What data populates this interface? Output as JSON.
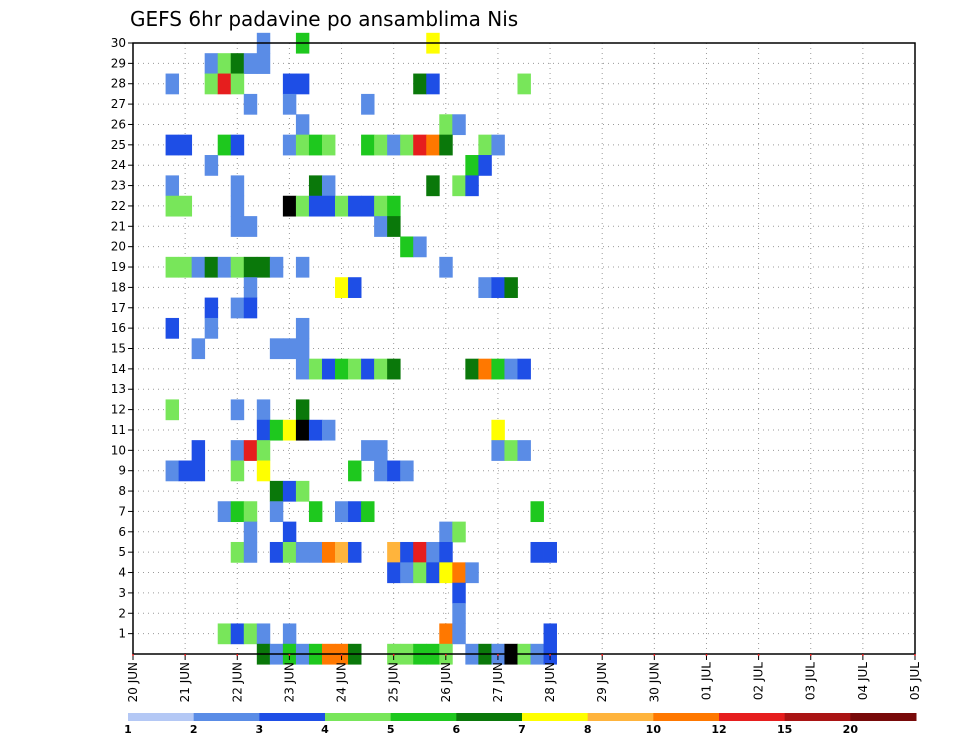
{
  "chart_data": {
    "type": "heatmap",
    "title": "GEFS 6hr padavine po ansamblima Nis",
    "xlabel": "",
    "ylabel": "",
    "x_tick_labels": [
      "20 JUN",
      "21 JUN",
      "22 JUN",
      "23 JUN",
      "24 JUN",
      "25 JUN",
      "26 JUN",
      "27 JUN",
      "28 JUN",
      "29 JUN",
      "30 JUN",
      "01 JUL",
      "02 JUL",
      "03 JUL",
      "04 JUL",
      "05 JUL"
    ],
    "y_tick_labels": [
      "1",
      "2",
      "3",
      "4",
      "5",
      "6",
      "7",
      "8",
      "9",
      "10",
      "11",
      "12",
      "13",
      "14",
      "15",
      "16",
      "17",
      "18",
      "19",
      "20",
      "21",
      "22",
      "23",
      "24",
      "25",
      "26",
      "27",
      "28",
      "29",
      "30"
    ],
    "xlim": [
      0,
      15
    ],
    "ylim": [
      0,
      30
    ],
    "grid": true,
    "legend_placement": "bottom",
    "legend": {
      "labels": [
        "1",
        "2",
        "3",
        "4",
        "5",
        "6",
        "7",
        "8",
        "10",
        "12",
        "15",
        "20"
      ],
      "colors": [
        "#b4c8f5",
        "#5a8ce6",
        "#1e4ee6",
        "#78e65a",
        "#1ec81e",
        "#0a780a",
        "#ffff00",
        "#ffb43c",
        "#ff7800",
        "#e61e1e",
        "#aa1414",
        "#780a0a"
      ]
    },
    "cells": [
      [
        30,
        2.5,
        1
      ],
      [
        30,
        3.25,
        4
      ],
      [
        30,
        5.75,
        6
      ],
      [
        29,
        1.5,
        1
      ],
      [
        29,
        1.75,
        3
      ],
      [
        29,
        2.0,
        5
      ],
      [
        29,
        2.25,
        1
      ],
      [
        29,
        2.5,
        1
      ],
      [
        28,
        0.75,
        1
      ],
      [
        28,
        1.5,
        3
      ],
      [
        28,
        1.75,
        9
      ],
      [
        28,
        2.0,
        3
      ],
      [
        28,
        3.0,
        2
      ],
      [
        28,
        3.25,
        2
      ],
      [
        28,
        5.5,
        5
      ],
      [
        28,
        5.75,
        2
      ],
      [
        28,
        7.5,
        3
      ],
      [
        27,
        2.25,
        1
      ],
      [
        27,
        3.0,
        1
      ],
      [
        27,
        4.5,
        1
      ],
      [
        26,
        3.25,
        1
      ],
      [
        26,
        6.0,
        3
      ],
      [
        26,
        6.25,
        1
      ],
      [
        25,
        0.75,
        2
      ],
      [
        25,
        1.0,
        2
      ],
      [
        25,
        1.75,
        4
      ],
      [
        25,
        2.0,
        2
      ],
      [
        25,
        3.0,
        1
      ],
      [
        25,
        3.25,
        3
      ],
      [
        25,
        3.5,
        4
      ],
      [
        25,
        3.75,
        3
      ],
      [
        25,
        4.5,
        4
      ],
      [
        25,
        4.75,
        3
      ],
      [
        25,
        5.0,
        1
      ],
      [
        25,
        5.25,
        3
      ],
      [
        25,
        5.5,
        9
      ],
      [
        25,
        5.75,
        8
      ],
      [
        25,
        6.0,
        5
      ],
      [
        25,
        6.75,
        3
      ],
      [
        25,
        7.0,
        1
      ],
      [
        24,
        1.5,
        1
      ],
      [
        24,
        6.5,
        4
      ],
      [
        24,
        6.75,
        2
      ],
      [
        23,
        0.75,
        1
      ],
      [
        23,
        2.0,
        1
      ],
      [
        23,
        3.5,
        5
      ],
      [
        23,
        3.75,
        1
      ],
      [
        23,
        5.75,
        5
      ],
      [
        23,
        6.25,
        3
      ],
      [
        23,
        6.5,
        2
      ],
      [
        22,
        0.75,
        3
      ],
      [
        22,
        1.0,
        3
      ],
      [
        22,
        2.0,
        1
      ],
      [
        22,
        3.0,
        12
      ],
      [
        22,
        3.25,
        3
      ],
      [
        22,
        3.5,
        2
      ],
      [
        22,
        3.75,
        2
      ],
      [
        22,
        4.0,
        3
      ],
      [
        22,
        4.25,
        2
      ],
      [
        22,
        4.5,
        2
      ],
      [
        22,
        4.75,
        3
      ],
      [
        22,
        5.0,
        4
      ],
      [
        21,
        2.0,
        1
      ],
      [
        21,
        2.25,
        1
      ],
      [
        21,
        4.75,
        1
      ],
      [
        21,
        5.0,
        5
      ],
      [
        20,
        5.25,
        4
      ],
      [
        20,
        5.5,
        1
      ],
      [
        19,
        0.75,
        3
      ],
      [
        19,
        1.0,
        3
      ],
      [
        19,
        1.25,
        1
      ],
      [
        19,
        1.5,
        5
      ],
      [
        19,
        1.75,
        1
      ],
      [
        19,
        2.0,
        3
      ],
      [
        19,
        2.25,
        5
      ],
      [
        19,
        2.5,
        5
      ],
      [
        19,
        2.75,
        1
      ],
      [
        19,
        3.25,
        1
      ],
      [
        19,
        6.0,
        1
      ],
      [
        18,
        2.25,
        1
      ],
      [
        18,
        4.0,
        6
      ],
      [
        18,
        4.25,
        2
      ],
      [
        18,
        6.75,
        1
      ],
      [
        18,
        7.0,
        2
      ],
      [
        18,
        7.25,
        5
      ],
      [
        17,
        1.5,
        2
      ],
      [
        17,
        2.0,
        1
      ],
      [
        17,
        2.25,
        2
      ],
      [
        16,
        0.75,
        2
      ],
      [
        16,
        1.5,
        1
      ],
      [
        16,
        3.25,
        1
      ],
      [
        15,
        1.25,
        1
      ],
      [
        15,
        2.75,
        1
      ],
      [
        15,
        3.0,
        1
      ],
      [
        15,
        3.25,
        1
      ],
      [
        14,
        3.25,
        1
      ],
      [
        14,
        3.5,
        3
      ],
      [
        14,
        3.75,
        2
      ],
      [
        14,
        4.0,
        4
      ],
      [
        14,
        4.25,
        3
      ],
      [
        14,
        4.5,
        2
      ],
      [
        14,
        4.75,
        3
      ],
      [
        14,
        5.0,
        5
      ],
      [
        14,
        6.5,
        5
      ],
      [
        14,
        6.75,
        8
      ],
      [
        14,
        7.0,
        4
      ],
      [
        14,
        7.25,
        1
      ],
      [
        14,
        7.5,
        2
      ],
      [
        12,
        0.75,
        3
      ],
      [
        12,
        2.0,
        1
      ],
      [
        12,
        2.5,
        1
      ],
      [
        12,
        3.25,
        5
      ],
      [
        11,
        2.5,
        2
      ],
      [
        11,
        2.75,
        4
      ],
      [
        11,
        3.0,
        6
      ],
      [
        11,
        3.25,
        12
      ],
      [
        11,
        3.5,
        2
      ],
      [
        11,
        3.75,
        1
      ],
      [
        11,
        7.0,
        6
      ],
      [
        10,
        1.25,
        2
      ],
      [
        10,
        2.0,
        1
      ],
      [
        10,
        2.25,
        9
      ],
      [
        10,
        2.5,
        3
      ],
      [
        10,
        4.5,
        1
      ],
      [
        10,
        4.75,
        1
      ],
      [
        10,
        7.0,
        1
      ],
      [
        10,
        7.25,
        3
      ],
      [
        10,
        7.5,
        1
      ],
      [
        9,
        0.75,
        1
      ],
      [
        9,
        1.0,
        2
      ],
      [
        9,
        1.25,
        2
      ],
      [
        9,
        2.0,
        3
      ],
      [
        9,
        2.5,
        6
      ],
      [
        9,
        4.25,
        4
      ],
      [
        9,
        4.75,
        1
      ],
      [
        9,
        5.0,
        2
      ],
      [
        9,
        5.25,
        1
      ],
      [
        8,
        2.75,
        5
      ],
      [
        8,
        3.0,
        2
      ],
      [
        8,
        3.25,
        3
      ],
      [
        7,
        1.75,
        1
      ],
      [
        7,
        2.0,
        4
      ],
      [
        7,
        2.25,
        3
      ],
      [
        7,
        2.75,
        1
      ],
      [
        7,
        3.5,
        4
      ],
      [
        7,
        4.0,
        1
      ],
      [
        7,
        4.25,
        2
      ],
      [
        7,
        4.5,
        4
      ],
      [
        7,
        7.75,
        4
      ],
      [
        6,
        2.25,
        1
      ],
      [
        6,
        3.0,
        2
      ],
      [
        6,
        6.0,
        1
      ],
      [
        6,
        6.25,
        3
      ],
      [
        5,
        2.0,
        3
      ],
      [
        5,
        2.25,
        1
      ],
      [
        5,
        2.75,
        2
      ],
      [
        5,
        3.0,
        3
      ],
      [
        5,
        3.25,
        1
      ],
      [
        5,
        3.5,
        1
      ],
      [
        5,
        3.75,
        8
      ],
      [
        5,
        4.0,
        7
      ],
      [
        5,
        4.25,
        2
      ],
      [
        5,
        5.0,
        7
      ],
      [
        5,
        5.25,
        2
      ],
      [
        5,
        5.5,
        9
      ],
      [
        5,
        5.75,
        1
      ],
      [
        5,
        6.0,
        2
      ],
      [
        5,
        7.75,
        2
      ],
      [
        5,
        8.0,
        2
      ],
      [
        4,
        5.0,
        2
      ],
      [
        4,
        5.25,
        1
      ],
      [
        4,
        5.5,
        3
      ],
      [
        4,
        5.75,
        2
      ],
      [
        4,
        6.0,
        6
      ],
      [
        4,
        6.25,
        8
      ],
      [
        4,
        6.5,
        1
      ],
      [
        3,
        6.25,
        2
      ],
      [
        2,
        6.25,
        1
      ],
      [
        1,
        1.75,
        3
      ],
      [
        1,
        2.0,
        2
      ],
      [
        1,
        2.25,
        3
      ],
      [
        1,
        2.5,
        1
      ],
      [
        1,
        3.0,
        1
      ],
      [
        1,
        6.0,
        8
      ],
      [
        1,
        6.25,
        1
      ],
      [
        1,
        8.0,
        2
      ],
      [
        0,
        2.5,
        5
      ],
      [
        0,
        2.75,
        1
      ],
      [
        0,
        3.0,
        4
      ],
      [
        0,
        3.25,
        1
      ],
      [
        0,
        3.5,
        4
      ],
      [
        0,
        3.75,
        8
      ],
      [
        0,
        4.0,
        8
      ],
      [
        0,
        4.25,
        5
      ],
      [
        0,
        5.0,
        3
      ],
      [
        0,
        5.25,
        3
      ],
      [
        0,
        5.5,
        4
      ],
      [
        0,
        5.75,
        4
      ],
      [
        0,
        6.0,
        3
      ],
      [
        0,
        6.5,
        1
      ],
      [
        0,
        6.75,
        5
      ],
      [
        0,
        7.0,
        1
      ],
      [
        0,
        7.25,
        12
      ],
      [
        0,
        7.5,
        3
      ],
      [
        0,
        7.75,
        1
      ],
      [
        0,
        8.0,
        2
      ]
    ]
  }
}
